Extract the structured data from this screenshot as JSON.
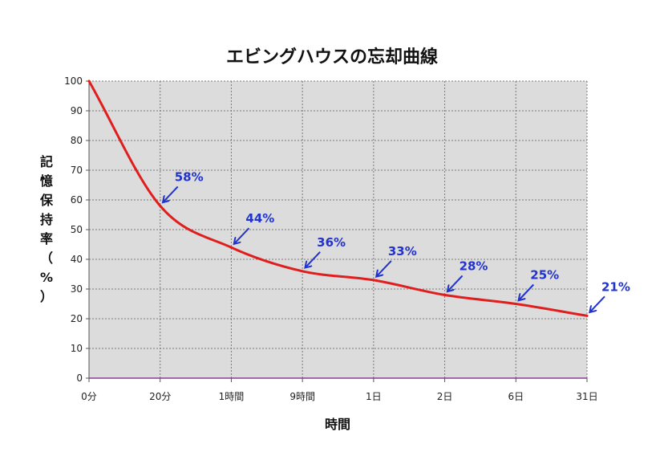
{
  "colors": {
    "plot_background": "#dcdcdc",
    "grid": "#7a7a7a",
    "curve": "#e01e1e",
    "annotation": "#2233cc",
    "axis_baseline": "#8a3a9a"
  },
  "chart_data": {
    "type": "line",
    "title": "エビングハウスの忘却曲線",
    "xlabel": "時間",
    "ylabel": "記憶保持率（%）",
    "categories": [
      "0分",
      "20分",
      "1時間",
      "9時間",
      "1日",
      "2日",
      "6日",
      "31日"
    ],
    "ylim": [
      0,
      100
    ],
    "yticks": [
      "0",
      "10",
      "20",
      "30",
      "40",
      "50",
      "60",
      "70",
      "80",
      "90",
      "100"
    ],
    "grid": true,
    "legend": "none",
    "series": [
      {
        "values": [
          100,
          58,
          44,
          36,
          33,
          28,
          25,
          21
        ]
      }
    ],
    "annotations": [
      {
        "category": "20分",
        "value": 58,
        "label": "58%"
      },
      {
        "category": "1時間",
        "value": 44,
        "label": "44%"
      },
      {
        "category": "9時間",
        "value": 36,
        "label": "36%"
      },
      {
        "category": "1日",
        "value": 33,
        "label": "33%"
      },
      {
        "category": "2日",
        "value": 28,
        "label": "28%"
      },
      {
        "category": "6日",
        "value": 25,
        "label": "25%"
      },
      {
        "category": "31日",
        "value": 21,
        "label": "21%"
      }
    ]
  }
}
